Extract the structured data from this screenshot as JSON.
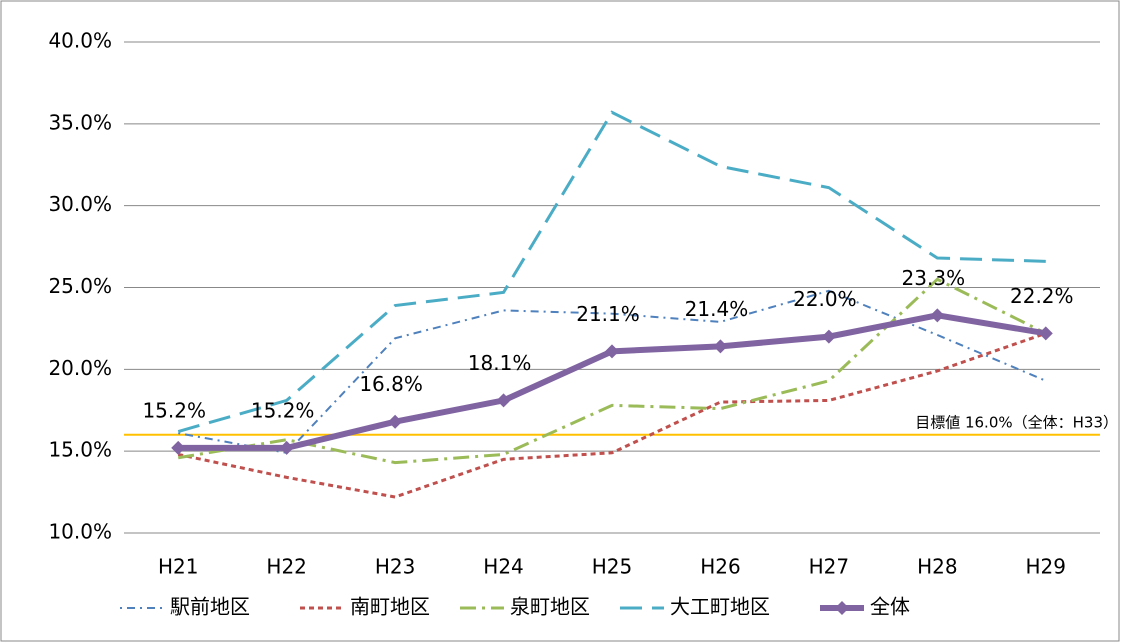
{
  "chart_data": {
    "type": "line",
    "categories": [
      "H21",
      "H22",
      "H23",
      "H24",
      "H25",
      "H26",
      "H27",
      "H28",
      "H29"
    ],
    "ylim": [
      10,
      40
    ],
    "yticks": [
      {
        "value": 10,
        "label": "10.0%"
      },
      {
        "value": 15,
        "label": "15.0%"
      },
      {
        "value": 20,
        "label": "20.0%"
      },
      {
        "value": 25,
        "label": "25.0%"
      },
      {
        "value": 30,
        "label": "30.0%"
      },
      {
        "value": 35,
        "label": "35.0%"
      },
      {
        "value": 40,
        "label": "40.0%"
      }
    ],
    "grid": true,
    "legend": "bottom",
    "target": {
      "value": 16,
      "label": "目標値 16.0%（全体：H33）",
      "color": "#ffc000"
    },
    "series": [
      {
        "name": "駅前地区",
        "color": "#4f81bd",
        "values": [
          16.1,
          14.9,
          21.9,
          23.6,
          23.4,
          22.9,
          24.8,
          22.1,
          19.3
        ]
      },
      {
        "name": "南町地区",
        "color": "#c0504d",
        "values": [
          14.8,
          13.4,
          12.2,
          14.5,
          14.9,
          18.0,
          18.1,
          19.9,
          22.2
        ]
      },
      {
        "name": "泉町地区",
        "color": "#9bbb59",
        "values": [
          14.6,
          15.7,
          14.3,
          14.8,
          17.8,
          17.6,
          19.3,
          25.5,
          22.2
        ]
      },
      {
        "name": "大工町地区",
        "color": "#4bacc6",
        "values": [
          16.2,
          18.1,
          23.9,
          24.7,
          35.7,
          32.4,
          31.1,
          26.8,
          26.6
        ]
      },
      {
        "name": "全体",
        "color": "#8064a2",
        "values": [
          15.2,
          15.2,
          16.8,
          18.1,
          21.1,
          21.4,
          22.0,
          23.3,
          22.2
        ],
        "value_labels": [
          "15.2%",
          "15.2%",
          "16.8%",
          "18.1%",
          "21.1%",
          "21.4%",
          "22.0%",
          "23.3%",
          "22.2%"
        ]
      }
    ]
  }
}
